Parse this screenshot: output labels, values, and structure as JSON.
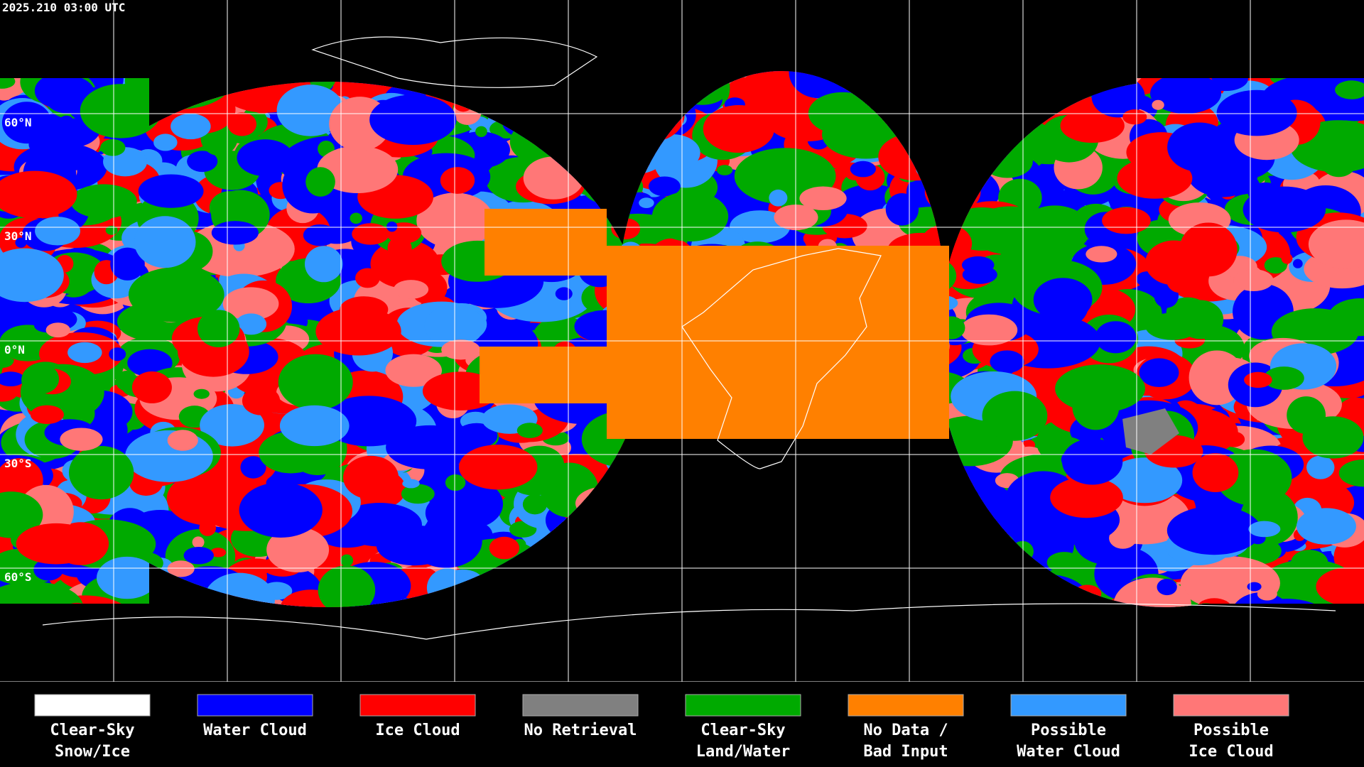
{
  "header": {
    "timestamp": "2025.210 03:00 UTC"
  },
  "map": {
    "lat_labels": [
      "60°N",
      "30°N",
      "0°N",
      "30°S",
      "60°S"
    ]
  },
  "legend": {
    "items": [
      {
        "lines": [
          "Clear-Sky",
          "Snow/Ice"
        ],
        "color": "#ffffff"
      },
      {
        "lines": [
          "Water Cloud"
        ],
        "color": "#0000ff"
      },
      {
        "lines": [
          "Ice Cloud"
        ],
        "color": "#ff0000"
      },
      {
        "lines": [
          "No Retrieval"
        ],
        "color": "#808080"
      },
      {
        "lines": [
          "Clear-Sky",
          "Land/Water"
        ],
        "color": "#00aa00"
      },
      {
        "lines": [
          "No Data /",
          "Bad Input"
        ],
        "color": "#ff8000"
      },
      {
        "lines": [
          "Possible",
          "Water Cloud"
        ],
        "color": "#3399ff"
      },
      {
        "lines": [
          "Possible",
          "Ice Cloud"
        ],
        "color": "#ff7777"
      }
    ]
  }
}
